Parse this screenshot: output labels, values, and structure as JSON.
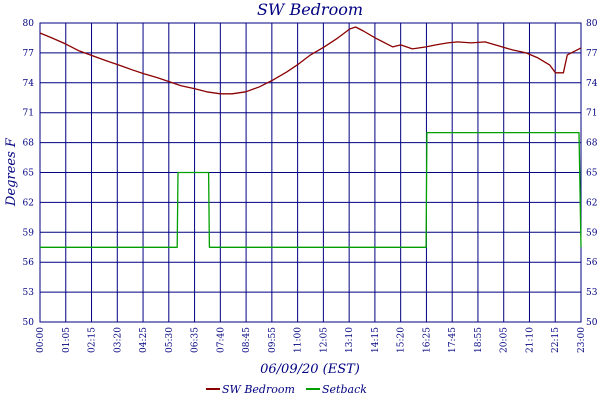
{
  "chart_data": {
    "type": "line",
    "title": "SW Bedroom",
    "xlabel": "06/09/20 (EST)",
    "ylabel": "Degrees F",
    "ylim": [
      50,
      80
    ],
    "y_ticks": [
      "50",
      "53",
      "56",
      "59",
      "62",
      "65",
      "68",
      "71",
      "74",
      "77",
      "80"
    ],
    "x_ticks": [
      "00:00",
      "01:05",
      "02:15",
      "03:20",
      "04:25",
      "05:30",
      "06:35",
      "07:40",
      "08:45",
      "09:55",
      "11:00",
      "12:05",
      "13:10",
      "14:15",
      "15:20",
      "16:25",
      "17:45",
      "18:55",
      "20:05",
      "21:10",
      "22:15",
      "23:00"
    ],
    "grid": true,
    "legend_position": "bottom",
    "colors": {
      "axes": "#000080",
      "grid": "#000080",
      "background": "#ffffff"
    },
    "series": [
      {
        "name": "SW Bedroom",
        "color": "#8b0000",
        "points": [
          [
            "00:00",
            79.0
          ],
          [
            "00:30",
            78.5
          ],
          [
            "01:05",
            77.9
          ],
          [
            "01:40",
            77.2
          ],
          [
            "02:15",
            76.7
          ],
          [
            "02:50",
            76.2
          ],
          [
            "03:20",
            75.8
          ],
          [
            "03:55",
            75.3
          ],
          [
            "04:25",
            74.9
          ],
          [
            "05:00",
            74.5
          ],
          [
            "05:30",
            74.1
          ],
          [
            "06:00",
            73.7
          ],
          [
            "06:35",
            73.4
          ],
          [
            "07:05",
            73.1
          ],
          [
            "07:40",
            72.9
          ],
          [
            "08:10",
            72.9
          ],
          [
            "08:45",
            73.1
          ],
          [
            "09:20",
            73.6
          ],
          [
            "09:55",
            74.3
          ],
          [
            "10:30",
            75.1
          ],
          [
            "11:00",
            75.9
          ],
          [
            "11:30",
            76.8
          ],
          [
            "12:05",
            77.6
          ],
          [
            "12:40",
            78.5
          ],
          [
            "13:10",
            79.4
          ],
          [
            "13:25",
            79.6
          ],
          [
            "13:45",
            79.2
          ],
          [
            "14:15",
            78.5
          ],
          [
            "14:45",
            77.9
          ],
          [
            "15:00",
            77.6
          ],
          [
            "15:20",
            77.8
          ],
          [
            "15:50",
            77.4
          ],
          [
            "16:25",
            77.6
          ],
          [
            "16:50",
            77.8
          ],
          [
            "17:20",
            78.0
          ],
          [
            "17:45",
            78.1
          ],
          [
            "18:20",
            78.0
          ],
          [
            "18:55",
            78.1
          ],
          [
            "19:30",
            77.7
          ],
          [
            "20:05",
            77.3
          ],
          [
            "20:40",
            77.0
          ],
          [
            "21:10",
            76.5
          ],
          [
            "21:40",
            75.8
          ],
          [
            "21:55",
            75.0
          ],
          [
            "22:15",
            75.0
          ],
          [
            "22:25",
            76.8
          ],
          [
            "22:45",
            77.2
          ],
          [
            "23:00",
            77.5
          ]
        ]
      },
      {
        "name": "Setback",
        "color": "#00a000",
        "points": [
          [
            "00:00",
            57.5
          ],
          [
            "05:50",
            57.5
          ],
          [
            "05:52",
            65.0
          ],
          [
            "07:10",
            65.0
          ],
          [
            "07:12",
            57.5
          ],
          [
            "16:25",
            57.5
          ],
          [
            "16:27",
            69.0
          ],
          [
            "22:55",
            69.0
          ],
          [
            "23:00",
            57.5
          ]
        ]
      }
    ]
  }
}
